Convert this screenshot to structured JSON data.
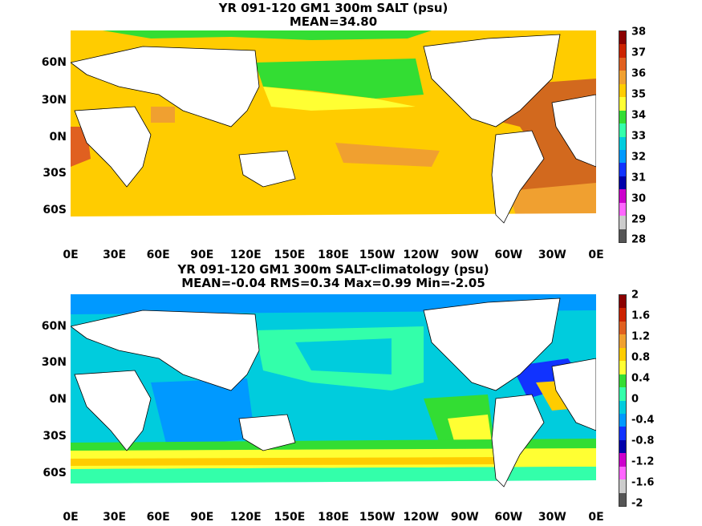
{
  "maps": [
    {
      "title_line1": "YR 091-120 GM1 300m SALT (psu)",
      "title_line2": "MEAN=34.80",
      "colorbar_ticks": [
        "38",
        "37",
        "36",
        "35",
        "34",
        "33",
        "32",
        "31",
        "30",
        "29",
        "28"
      ],
      "colorbar_colors": [
        "#8b0000",
        "#cc2200",
        "#e06020",
        "#f0a030",
        "#ffcc00",
        "#ffff33",
        "#33dd33",
        "#33ffaa",
        "#00ccdd",
        "#0099ff",
        "#1133ff",
        "#0000aa",
        "#cc00cc",
        "#ff66ff",
        "#cccccc",
        "#555555"
      ]
    },
    {
      "title_line1": "YR 091-120 GM1 300m SALT-climatology (psu)",
      "title_line2": "MEAN=-0.04   RMS=0.34   Max=0.99   Min=-2.05",
      "colorbar_ticks": [
        "2",
        "1.6",
        "1.2",
        "0.8",
        "0.4",
        "0",
        "-0.4",
        "-0.8",
        "-1.2",
        "-1.6",
        "-2"
      ],
      "colorbar_colors": [
        "#8b0000",
        "#cc2200",
        "#e06020",
        "#f0a030",
        "#ffcc00",
        "#ffff33",
        "#33dd33",
        "#33ffaa",
        "#00ccdd",
        "#0099ff",
        "#1133ff",
        "#0000aa",
        "#cc00cc",
        "#ff66ff",
        "#cccccc",
        "#555555"
      ]
    }
  ],
  "x_tick_labels": [
    "0E",
    "30E",
    "60E",
    "90E",
    "120E",
    "150E",
    "180E",
    "150W",
    "120W",
    "90W",
    "60W",
    "30W",
    "0E"
  ],
  "y_tick_labels": [
    "60N",
    "30N",
    "0N",
    "30S",
    "60S"
  ]
}
